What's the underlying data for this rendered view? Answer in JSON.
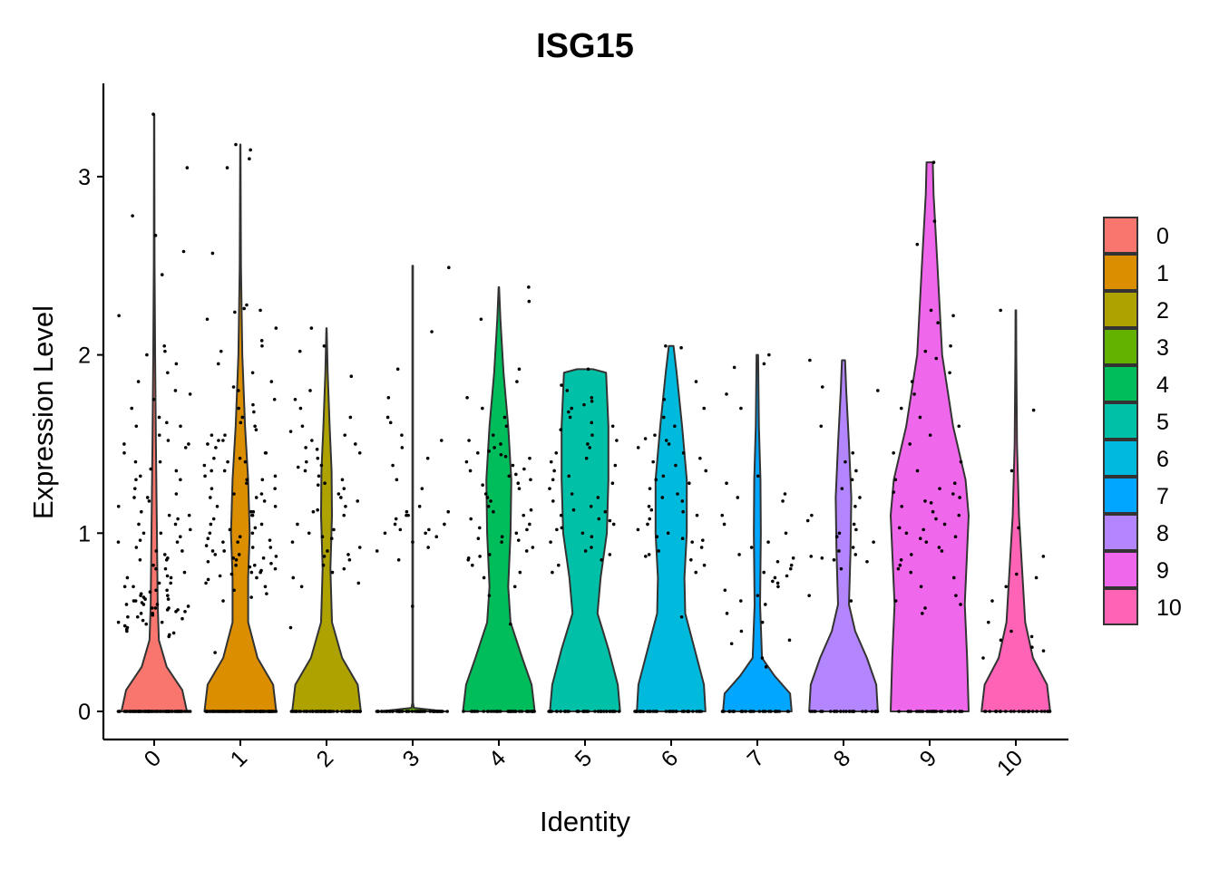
{
  "chart_data": {
    "type": "violin",
    "title": "ISG15",
    "xlabel": "Identity",
    "ylabel": "Expression Level",
    "ylim": [
      -0.15,
      3.5
    ],
    "yticks": [
      0,
      1,
      2,
      3
    ],
    "categories": [
      "0",
      "1",
      "2",
      "3",
      "4",
      "5",
      "6",
      "7",
      "8",
      "9",
      "10"
    ],
    "legend": {
      "position": "right",
      "entries": [
        "0",
        "1",
        "2",
        "3",
        "4",
        "5",
        "6",
        "7",
        "8",
        "9",
        "10"
      ]
    },
    "colors": [
      "#F8766D",
      "#DB8E00",
      "#AEA200",
      "#64B200",
      "#00BD5C",
      "#00C1A7",
      "#00BADE",
      "#00A6FF",
      "#B385FF",
      "#EF67EB",
      "#FF63B6"
    ],
    "max_values": [
      3.35,
      3.18,
      2.15,
      2.5,
      2.38,
      1.92,
      2.05,
      2.0,
      1.97,
      3.08,
      2.25
    ],
    "violin_profiles": [
      [
        [
          0,
          0.42
        ],
        [
          0.12,
          0.36
        ],
        [
          0.25,
          0.16
        ],
        [
          0.4,
          0.06
        ],
        [
          0.6,
          0.045
        ],
        [
          1,
          0.035
        ],
        [
          1.5,
          0.022
        ],
        [
          2,
          0.012
        ],
        [
          2.5,
          0.005
        ],
        [
          3,
          0.003
        ],
        [
          3.35,
          0.002
        ]
      ],
      [
        [
          0,
          0.46
        ],
        [
          0.15,
          0.42
        ],
        [
          0.3,
          0.22
        ],
        [
          0.5,
          0.1
        ],
        [
          0.75,
          0.1
        ],
        [
          1,
          0.12
        ],
        [
          1.3,
          0.1
        ],
        [
          1.6,
          0.06
        ],
        [
          2,
          0.025
        ],
        [
          2.5,
          0.008
        ],
        [
          3.18,
          0.002
        ]
      ],
      [
        [
          0,
          0.44
        ],
        [
          0.15,
          0.4
        ],
        [
          0.3,
          0.2
        ],
        [
          0.5,
          0.07
        ],
        [
          0.8,
          0.05
        ],
        [
          1.1,
          0.07
        ],
        [
          1.35,
          0.065
        ],
        [
          1.6,
          0.04
        ],
        [
          1.9,
          0.015
        ],
        [
          2.15,
          0.002
        ]
      ],
      [
        [
          0,
          0.42
        ],
        [
          0.02,
          0.015
        ],
        [
          0.05,
          0.004
        ],
        [
          2.5,
          0.004
        ]
      ],
      [
        [
          0,
          0.46
        ],
        [
          0.15,
          0.42
        ],
        [
          0.3,
          0.3
        ],
        [
          0.5,
          0.15
        ],
        [
          0.7,
          0.12
        ],
        [
          1,
          0.15
        ],
        [
          1.3,
          0.16
        ],
        [
          1.6,
          0.12
        ],
        [
          1.9,
          0.06
        ],
        [
          2.2,
          0.02
        ],
        [
          2.38,
          0.003
        ]
      ],
      [
        [
          0,
          0.45
        ],
        [
          0.15,
          0.42
        ],
        [
          0.35,
          0.3
        ],
        [
          0.55,
          0.16
        ],
        [
          0.75,
          0.2
        ],
        [
          1,
          0.28
        ],
        [
          1.3,
          0.3
        ],
        [
          1.6,
          0.3
        ],
        [
          1.9,
          0.27
        ],
        [
          1.92,
          0.1
        ]
      ],
      [
        [
          0,
          0.44
        ],
        [
          0.15,
          0.42
        ],
        [
          0.35,
          0.3
        ],
        [
          0.55,
          0.18
        ],
        [
          0.75,
          0.17
        ],
        [
          1,
          0.2
        ],
        [
          1.3,
          0.2
        ],
        [
          1.6,
          0.14
        ],
        [
          1.9,
          0.07
        ],
        [
          2.05,
          0.03
        ]
      ],
      [
        [
          0,
          0.44
        ],
        [
          0.1,
          0.42
        ],
        [
          0.2,
          0.22
        ],
        [
          0.3,
          0.06
        ],
        [
          0.6,
          0.035
        ],
        [
          1,
          0.045
        ],
        [
          1.3,
          0.04
        ],
        [
          1.6,
          0.02
        ],
        [
          2,
          0.01
        ]
      ],
      [
        [
          0,
          0.44
        ],
        [
          0.15,
          0.42
        ],
        [
          0.3,
          0.3
        ],
        [
          0.45,
          0.15
        ],
        [
          0.6,
          0.07
        ],
        [
          0.9,
          0.09
        ],
        [
          1.2,
          0.1
        ],
        [
          1.5,
          0.07
        ],
        [
          1.8,
          0.035
        ],
        [
          1.97,
          0.02
        ]
      ],
      [
        [
          0,
          0.5
        ],
        [
          0.3,
          0.48
        ],
        [
          0.6,
          0.45
        ],
        [
          0.9,
          0.48
        ],
        [
          1.1,
          0.5
        ],
        [
          1.3,
          0.46
        ],
        [
          1.6,
          0.3
        ],
        [
          2,
          0.16
        ],
        [
          2.5,
          0.1
        ],
        [
          2.9,
          0.05
        ],
        [
          3.08,
          0.04
        ]
      ],
      [
        [
          0,
          0.44
        ],
        [
          0.15,
          0.4
        ],
        [
          0.3,
          0.22
        ],
        [
          0.5,
          0.12
        ],
        [
          0.8,
          0.08
        ],
        [
          1.1,
          0.04
        ],
        [
          1.5,
          0.015
        ],
        [
          2,
          0.006
        ],
        [
          2.25,
          0.004
        ]
      ]
    ],
    "zero_counts": [
      80,
      90,
      60,
      60,
      40,
      40,
      40,
      30,
      30,
      25,
      25
    ],
    "point_values": [
      [
        3.35,
        3.05,
        2.78,
        2.67,
        2.58,
        2.45,
        2.22,
        2.05,
        2.02,
        2.0,
        1.95,
        1.9,
        1.85,
        1.8,
        1.78,
        1.75,
        1.7,
        1.65,
        1.62,
        1.6,
        1.55,
        1.52,
        1.5,
        1.48,
        1.45,
        1.4,
        1.36,
        1.35,
        1.32,
        1.3,
        1.25,
        1.22,
        1.2,
        1.18,
        1.15,
        1.12,
        1.1,
        1.08,
        1.05,
        1.02,
        1.0,
        0.98,
        0.96,
        0.95,
        0.92,
        0.9,
        0.88,
        0.86,
        0.85,
        0.82,
        0.8,
        0.78,
        0.76,
        0.75,
        0.72,
        0.7,
        0.68,
        0.67,
        0.66,
        0.65,
        0.64,
        0.63,
        0.62,
        0.61,
        0.6,
        0.6,
        0.59,
        0.58,
        0.58,
        0.57,
        0.56,
        0.55,
        0.55,
        0.54,
        0.53,
        0.52,
        0.51,
        0.5,
        0.5,
        0.49,
        0.48,
        0.47,
        0.46,
        0.45,
        0.44,
        0.43,
        0.42,
        0.6,
        0.62,
        0.58,
        0.56,
        0.65,
        0.7,
        0.9,
        1.0,
        1.1,
        1.2,
        1.3,
        1.4,
        1.5,
        1.6,
        0.75,
        0.85,
        0.95,
        1.05,
        0.8,
        0.72,
        0.68,
        0.63,
        0.57,
        0.53
      ],
      [
        3.18,
        3.15,
        3.1,
        3.05,
        2.57,
        2.28,
        2.26,
        2.25,
        2.24,
        2.2,
        2.15,
        2.08,
        2.05,
        2.02,
        1.95,
        1.9,
        1.85,
        1.82,
        1.8,
        1.75,
        1.72,
        1.7,
        1.68,
        1.65,
        1.62,
        1.6,
        1.58,
        1.55,
        1.52,
        1.5,
        1.48,
        1.45,
        1.42,
        1.4,
        1.38,
        1.35,
        1.32,
        1.3,
        1.28,
        1.25,
        1.22,
        1.2,
        1.18,
        1.15,
        1.12,
        1.1,
        1.08,
        1.05,
        1.02,
        1.0,
        0.98,
        0.96,
        0.95,
        0.93,
        0.92,
        0.9,
        0.88,
        0.87,
        0.86,
        0.85,
        0.84,
        0.83,
        0.82,
        0.81,
        0.8,
        0.79,
        0.78,
        0.77,
        0.76,
        0.75,
        0.74,
        0.72,
        0.7,
        0.68,
        0.66,
        0.64,
        0.62,
        0.33,
        1.2,
        1.3,
        1.4,
        1.1,
        1.0,
        0.9,
        0.95,
        1.05,
        1.15,
        1.25,
        1.35,
        1.45,
        1.55,
        0.88,
        0.92,
        0.97,
        1.03,
        1.12,
        1.22,
        1.32,
        1.42,
        1.52,
        0.82,
        0.86,
        0.78
      ],
      [
        2.15,
        2.05,
        2.02,
        1.88,
        1.8,
        1.75,
        1.7,
        1.65,
        1.6,
        1.57,
        1.55,
        1.52,
        1.5,
        1.48,
        1.45,
        1.42,
        1.4,
        1.38,
        1.35,
        1.32,
        1.3,
        1.28,
        1.25,
        1.22,
        1.2,
        1.18,
        1.15,
        1.12,
        1.1,
        1.05,
        1.02,
        1.0,
        0.98,
        0.95,
        0.92,
        0.9,
        0.88,
        0.85,
        0.82,
        0.8,
        0.78,
        0.75,
        0.72,
        0.7,
        0.47,
        1.13,
        1.27,
        1.37,
        1.47,
        0.87,
        0.97
      ],
      [
        2.49,
        2.13,
        1.92,
        1.76,
        1.65,
        1.62,
        1.55,
        1.52,
        1.48,
        1.42,
        1.38,
        1.3,
        1.25,
        1.15,
        1.12,
        1.1,
        1.1,
        1.08,
        1.05,
        1.05,
        1.02,
        1.02,
        1.0,
        1.0,
        0.98,
        0.95,
        0.92,
        0.9,
        0.85,
        0.59,
        1.12
      ],
      [
        2.38,
        2.3,
        2.2,
        1.92,
        1.85,
        1.76,
        1.7,
        1.65,
        1.6,
        1.55,
        1.52,
        1.5,
        1.48,
        1.46,
        1.45,
        1.44,
        1.42,
        1.4,
        1.38,
        1.36,
        1.35,
        1.32,
        1.3,
        1.28,
        1.25,
        1.22,
        1.2,
        1.18,
        1.15,
        1.12,
        1.1,
        1.08,
        1.05,
        1.03,
        1.02,
        1.0,
        0.98,
        0.96,
        0.95,
        0.92,
        0.9,
        0.88,
        0.87,
        0.86,
        0.85,
        0.82,
        0.78,
        0.75,
        0.7,
        0.65,
        0.49,
        1.27,
        1.33,
        1.43,
        1.13,
        0.97
      ],
      [
        1.92,
        1.83,
        1.8,
        1.76,
        1.74,
        1.72,
        1.7,
        1.68,
        1.65,
        1.62,
        1.6,
        1.58,
        1.55,
        1.52,
        1.5,
        1.48,
        1.45,
        1.42,
        1.4,
        1.38,
        1.35,
        1.32,
        1.3,
        1.28,
        1.25,
        1.22,
        1.2,
        1.18,
        1.15,
        1.12,
        1.1,
        1.08,
        1.05,
        1.02,
        1.0,
        0.98,
        0.95,
        0.92,
        0.9,
        0.88,
        0.85,
        0.82,
        0.78,
        1.13,
        1.07,
        1.03
      ],
      [
        2.05,
        2.04,
        1.85,
        1.75,
        1.7,
        1.65,
        1.6,
        1.55,
        1.53,
        1.52,
        1.5,
        1.48,
        1.45,
        1.42,
        1.4,
        1.38,
        1.35,
        1.32,
        1.3,
        1.28,
        1.25,
        1.22,
        1.2,
        1.18,
        1.15,
        1.12,
        1.1,
        1.08,
        1.05,
        1.02,
        1.0,
        0.98,
        0.96,
        0.95,
        0.92,
        0.9,
        0.88,
        0.87,
        0.85,
        0.82,
        0.78,
        0.53,
        1.13,
        0.97
      ],
      [
        2.0,
        1.95,
        1.93,
        1.78,
        1.7,
        1.32,
        1.28,
        1.22,
        1.2,
        1.18,
        1.1,
        1.05,
        1.0,
        0.95,
        0.92,
        0.88,
        0.86,
        0.84,
        0.82,
        0.8,
        0.78,
        0.76,
        0.75,
        0.72,
        0.7,
        0.68,
        0.65,
        0.62,
        0.6,
        0.55,
        0.5,
        0.45,
        0.4,
        0.38,
        0.3,
        0.25,
        0.73
      ],
      [
        1.97,
        1.82,
        1.8,
        1.6,
        1.45,
        1.4,
        1.35,
        1.3,
        1.25,
        1.2,
        1.15,
        1.1,
        1.05,
        1.02,
        1.0,
        0.98,
        0.95,
        0.92,
        0.9,
        0.88,
        0.87,
        0.86,
        0.85,
        0.84,
        0.8,
        0.65,
        0.62,
        1.07
      ],
      [
        3.08,
        2.75,
        2.62,
        2.25,
        2.22,
        2.18,
        2.05,
        2.02,
        1.98,
        1.9,
        1.85,
        1.78,
        1.7,
        1.65,
        1.6,
        1.55,
        1.5,
        1.45,
        1.4,
        1.35,
        1.3,
        1.28,
        1.25,
        1.22,
        1.2,
        1.18,
        1.15,
        1.12,
        1.1,
        1.08,
        1.05,
        1.02,
        1.0,
        0.98,
        0.95,
        0.92,
        0.9,
        0.88,
        0.85,
        0.82,
        0.78,
        0.75,
        0.7,
        0.65,
        0.62,
        0.6,
        0.58,
        0.55,
        1.23,
        1.17,
        1.03,
        0.97,
        0.8
      ],
      [
        2.25,
        1.69,
        1.35,
        1.03,
        0.87,
        0.77,
        0.75,
        0.7,
        0.62,
        0.5,
        0.45,
        0.42,
        0.4,
        0.36,
        0.34,
        0.3
      ]
    ]
  }
}
